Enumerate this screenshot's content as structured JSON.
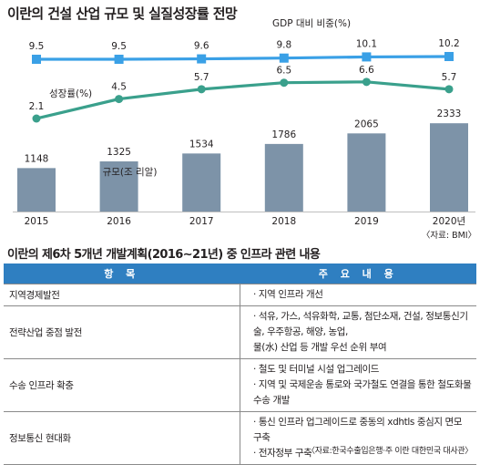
{
  "chart_data": {
    "type": "bar",
    "title": "이란의 건설 산업 규모 및 실질성장률 전망",
    "categories": [
      "2015",
      "2016",
      "2017",
      "2018",
      "2019",
      "2020년"
    ],
    "source": "〈자료: BMI〉",
    "series": [
      {
        "name": "GDP 대비 비중(%)",
        "type": "line",
        "color": "#3aa0e6",
        "values": [
          9.5,
          9.5,
          9.6,
          9.8,
          10.1,
          10.2
        ]
      },
      {
        "name": "성장률(%)",
        "type": "line",
        "color": "#3aa08c",
        "values": [
          2.1,
          4.5,
          5.7,
          6.5,
          6.6,
          5.7
        ]
      },
      {
        "name": "규모(조 리알)",
        "type": "bar",
        "color": "#7d93a8",
        "values": [
          1148,
          1325,
          1534,
          1786,
          2065,
          2333
        ]
      }
    ]
  },
  "table": {
    "title": "이란의 제6차 5개년 개발계획(2016∼21년) 중 인프라 관련 내용",
    "headers": [
      "항 목",
      "주 요 내 용"
    ],
    "rows": [
      {
        "category": "지역경제발전",
        "details": [
          "· 지역 인프라 개선"
        ]
      },
      {
        "category": "전략산업 중점 발전",
        "details": [
          "· 석유, 가스, 석유화학, 교통, 첨단소재, 건설, 정보통신기술, 우주항공, 해양, 농업,",
          "물(水) 산업 등 개발 우선 순위 부여"
        ]
      },
      {
        "category": "수송 인프라 확충",
        "details": [
          "· 철도 및 터미널 시설 업그레이드",
          "· 지역 및 국제운송 통로와 국가철도 연결을 통한 철도화물 수송 개발"
        ]
      },
      {
        "category": "정보통신 현대화",
        "details": [
          "· 통신 인프라 업그레이드로 중동의 xdhtls 중심지 면모 구축",
          "· 전자정부 구축"
        ]
      }
    ],
    "source": "〈자료:한국수출입은행·주 이란 대한민국 대사관〉"
  }
}
